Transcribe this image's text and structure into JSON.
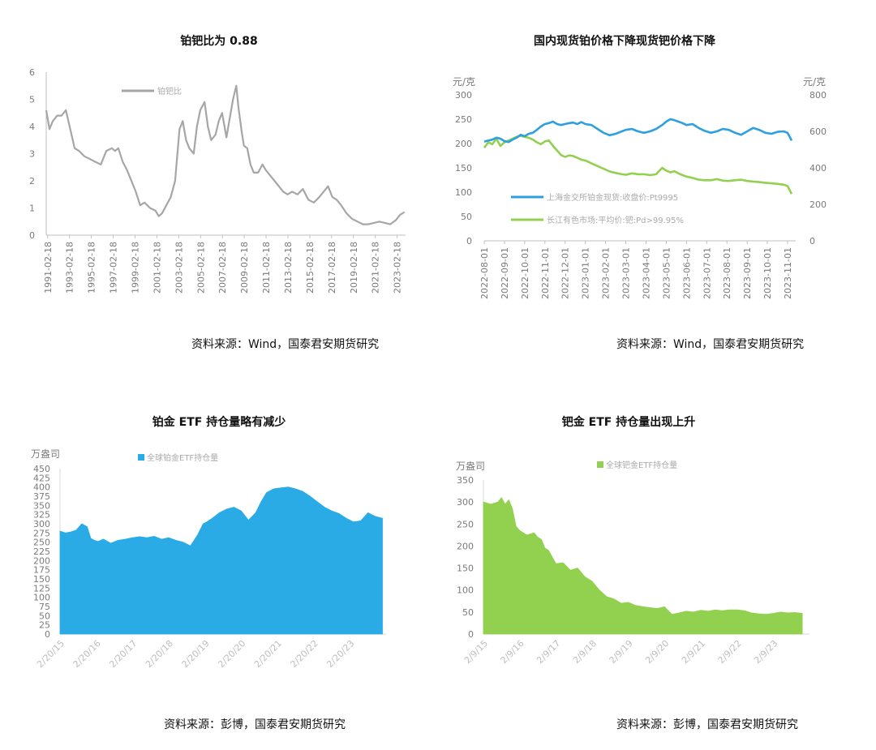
{
  "chart_data": [
    {
      "type": "line",
      "title": "铂钯比为 0.88",
      "source": "资料来源：Wind，国泰君安期货研究",
      "ylim": [
        0,
        6
      ],
      "yticks": [
        "0",
        "1",
        "2",
        "3",
        "4",
        "5",
        "6"
      ],
      "xticks": [
        "1991-02-18",
        "1993-02-18",
        "1995-02-18",
        "1997-02-18",
        "1999-02-18",
        "2001-02-18",
        "2003-02-18",
        "2005-02-18",
        "2007-02-18",
        "2009-02-18",
        "2011-02-18",
        "2013-02-18",
        "2015-02-18",
        "2017-02-18",
        "2019-02-18",
        "2021-02-18",
        "2023-02-18"
      ],
      "legend": "top-center",
      "series": [
        {
          "name": "铂钯比",
          "color": "#a6a6a6",
          "x": [
            1991.0,
            1991.3,
            1991.6,
            1992.0,
            1992.4,
            1992.8,
            1993.2,
            1993.6,
            1994.0,
            1994.5,
            1995.0,
            1995.5,
            1996.0,
            1996.5,
            1997.0,
            1997.3,
            1997.6,
            1998.0,
            1998.4,
            1998.8,
            1999.2,
            1999.6,
            2000.0,
            2000.5,
            2001.0,
            2001.3,
            2001.6,
            2002.0,
            2002.4,
            2002.8,
            2003.2,
            2003.5,
            2003.8,
            2004.1,
            2004.5,
            2004.8,
            2005.1,
            2005.5,
            2005.8,
            2006.1,
            2006.5,
            2006.8,
            2007.1,
            2007.5,
            2007.8,
            2008.1,
            2008.4,
            2008.6,
            2008.9,
            2009.1,
            2009.4,
            2009.7,
            2010.0,
            2010.4,
            2010.8,
            2011.1,
            2011.5,
            2011.9,
            2012.3,
            2012.7,
            2013.1,
            2013.5,
            2014.0,
            2014.5,
            2015.0,
            2015.5,
            2016.0,
            2016.4,
            2016.8,
            2017.2,
            2017.6,
            2018.0,
            2018.5,
            2019.0,
            2019.5,
            2020.0,
            2020.5,
            2021.0,
            2021.5,
            2022.0,
            2022.5,
            2023.0,
            2023.4,
            2023.8
          ],
          "values": [
            4.6,
            3.9,
            4.2,
            4.4,
            4.4,
            4.6,
            3.9,
            3.2,
            3.1,
            2.9,
            2.8,
            2.7,
            2.6,
            3.1,
            3.2,
            3.1,
            3.2,
            2.7,
            2.4,
            2.0,
            1.6,
            1.1,
            1.2,
            1.0,
            0.9,
            0.7,
            0.8,
            1.1,
            1.4,
            2.0,
            3.9,
            4.2,
            3.5,
            3.2,
            3.0,
            4.0,
            4.6,
            4.9,
            4.0,
            3.5,
            3.7,
            4.2,
            4.5,
            3.6,
            4.3,
            5.0,
            5.5,
            4.7,
            3.8,
            3.3,
            3.2,
            2.6,
            2.3,
            2.3,
            2.6,
            2.4,
            2.2,
            2.0,
            1.8,
            1.6,
            1.5,
            1.6,
            1.5,
            1.7,
            1.3,
            1.2,
            1.4,
            1.6,
            1.8,
            1.4,
            1.3,
            1.1,
            0.8,
            0.6,
            0.5,
            0.4,
            0.4,
            0.45,
            0.5,
            0.45,
            0.4,
            0.55,
            0.75,
            0.85
          ]
        }
      ]
    },
    {
      "type": "line",
      "title": "国内现货铂价格下降现货钯价格下降",
      "source": "资料来源：Wind，国泰君安期货研究",
      "yunit_left": "元/克",
      "yunit_right": "元/克",
      "ylim": [
        0,
        300
      ],
      "ylim_right": [
        0,
        800
      ],
      "yticks": [
        "0",
        "50",
        "100",
        "150",
        "200",
        "250",
        "300"
      ],
      "yticks_right": [
        "0",
        "200",
        "400",
        "600",
        "800"
      ],
      "xticks": [
        "2022-08-01",
        "2022-09-01",
        "2022-10-01",
        "2022-11-01",
        "2022-12-01",
        "2023-01-01",
        "2023-02-01",
        "2023-03-01",
        "2023-04-01",
        "2023-05-01",
        "2023-06-01",
        "2023-07-01",
        "2023-08-01",
        "2023-09-01",
        "2023-10-01",
        "2023-11-01"
      ],
      "legend": "left-middle",
      "series": [
        {
          "name": "上海金交所铂金现货:收盘价:Pt9995",
          "color": "#2e9fe0",
          "axis": "left",
          "x": [
            0.0,
            0.2,
            0.4,
            0.6,
            0.8,
            1.0,
            1.2,
            1.4,
            1.6,
            1.8,
            2.0,
            2.2,
            2.4,
            2.6,
            2.8,
            3.0,
            3.2,
            3.4,
            3.6,
            3.8,
            4.0,
            4.2,
            4.4,
            4.6,
            4.8,
            5.0,
            5.3,
            5.6,
            5.9,
            6.2,
            6.5,
            6.8,
            7.0,
            7.3,
            7.6,
            7.9,
            8.2,
            8.5,
            8.8,
            9.0,
            9.2,
            9.4,
            9.6,
            9.8,
            10.0,
            10.3,
            10.6,
            10.9,
            11.2,
            11.5,
            11.8,
            12.1,
            12.4,
            12.7,
            13.0,
            13.3,
            13.6,
            13.9,
            14.2,
            14.5,
            14.8,
            15.0,
            15.2
          ],
          "values": [
            204,
            206,
            208,
            212,
            210,
            205,
            203,
            208,
            212,
            218,
            215,
            220,
            222,
            228,
            235,
            240,
            242,
            245,
            240,
            238,
            240,
            242,
            243,
            240,
            244,
            240,
            238,
            230,
            222,
            217,
            220,
            225,
            228,
            230,
            225,
            222,
            225,
            230,
            238,
            245,
            250,
            248,
            245,
            242,
            238,
            240,
            232,
            226,
            222,
            225,
            230,
            228,
            222,
            218,
            225,
            232,
            228,
            222,
            220,
            224,
            225,
            222,
            206
          ]
        },
        {
          "name": "长江有色市场:平均价:钯:Pd>99.95%",
          "color": "#92d050",
          "axis": "right",
          "x": [
            0.0,
            0.2,
            0.4,
            0.6,
            0.8,
            1.0,
            1.2,
            1.4,
            1.6,
            1.8,
            2.0,
            2.2,
            2.4,
            2.6,
            2.8,
            3.0,
            3.2,
            3.4,
            3.6,
            3.8,
            4.0,
            4.2,
            4.4,
            4.6,
            4.8,
            5.0,
            5.3,
            5.6,
            5.9,
            6.2,
            6.5,
            6.8,
            7.0,
            7.3,
            7.6,
            7.9,
            8.2,
            8.5,
            8.8,
            9.0,
            9.2,
            9.4,
            9.6,
            9.8,
            10.0,
            10.3,
            10.6,
            10.9,
            11.2,
            11.5,
            11.8,
            12.1,
            12.4,
            12.7,
            13.0,
            13.3,
            13.6,
            13.9,
            14.2,
            14.5,
            14.8,
            15.0,
            15.2
          ],
          "values": [
            510,
            540,
            530,
            560,
            520,
            540,
            550,
            560,
            570,
            575,
            570,
            565,
            555,
            540,
            530,
            545,
            550,
            520,
            495,
            470,
            460,
            468,
            465,
            455,
            445,
            440,
            425,
            410,
            395,
            380,
            372,
            365,
            362,
            370,
            365,
            365,
            360,
            365,
            400,
            385,
            375,
            382,
            370,
            360,
            352,
            345,
            335,
            332,
            332,
            338,
            330,
            328,
            332,
            335,
            328,
            325,
            322,
            318,
            315,
            312,
            308,
            300,
            257
          ]
        }
      ]
    },
    {
      "type": "area",
      "title": "铂金 ETF 持仓量略有减少",
      "source": "资料来源：彭博，国泰君安期货研究",
      "yunit": "万盎司",
      "ylim": [
        0,
        450
      ],
      "yticks": [
        "0",
        "25",
        "50",
        "75",
        "100",
        "125",
        "150",
        "175",
        "200",
        "225",
        "250",
        "275",
        "300",
        "325",
        "350",
        "375",
        "400",
        "425",
        "450"
      ],
      "xticks": [
        "2/20/15",
        "2/20/16",
        "2/20/17",
        "2/20/18",
        "2/20/19",
        "2/20/20",
        "2/20/21",
        "2/20/22",
        "2/20/23"
      ],
      "legend": "top-center",
      "series": [
        {
          "name": "全球铂金ETF持仓量",
          "color": "#2aabe6",
          "x": [
            0.0,
            0.15,
            0.3,
            0.45,
            0.6,
            0.75,
            0.85,
            0.95,
            1.05,
            1.2,
            1.4,
            1.6,
            1.8,
            2.0,
            2.2,
            2.4,
            2.6,
            2.8,
            3.0,
            3.2,
            3.4,
            3.6,
            3.8,
            3.95,
            4.05,
            4.2,
            4.4,
            4.6,
            4.8,
            5.0,
            5.2,
            5.4,
            5.55,
            5.7,
            5.9,
            6.1,
            6.3,
            6.5,
            6.7,
            6.9,
            7.1,
            7.3,
            7.5,
            7.7,
            7.9,
            8.1,
            8.3,
            8.5,
            8.7,
            8.9
          ],
          "values": [
            280,
            275,
            278,
            283,
            300,
            292,
            260,
            255,
            252,
            258,
            247,
            255,
            258,
            262,
            265,
            262,
            266,
            258,
            262,
            255,
            250,
            240,
            270,
            300,
            305,
            315,
            330,
            340,
            345,
            335,
            310,
            330,
            360,
            385,
            395,
            398,
            400,
            395,
            388,
            375,
            360,
            345,
            335,
            328,
            315,
            305,
            308,
            330,
            320,
            315
          ]
        }
      ]
    },
    {
      "type": "area",
      "title": "钯金 ETF 持仓量出现上升",
      "source": "资料来源：彭博，国泰君安期货研究",
      "yunit": "万盎司",
      "ylim": [
        0,
        350
      ],
      "yticks": [
        "0",
        "50",
        "100",
        "150",
        "200",
        "250",
        "300",
        "350"
      ],
      "xticks": [
        "2/9/15",
        "2/9/16",
        "2/9/17",
        "2/9/18",
        "2/9/19",
        "2/9/20",
        "2/9/21",
        "2/9/22",
        "2/9/23"
      ],
      "legend": "top-center",
      "series": [
        {
          "name": "全球钯金ETF持仓量",
          "color": "#92d050",
          "x": [
            0.0,
            0.2,
            0.4,
            0.5,
            0.6,
            0.7,
            0.8,
            0.9,
            1.0,
            1.2,
            1.4,
            1.5,
            1.6,
            1.7,
            1.8,
            2.0,
            2.2,
            2.4,
            2.6,
            2.8,
            3.0,
            3.2,
            3.4,
            3.6,
            3.8,
            4.0,
            4.2,
            4.4,
            4.6,
            4.8,
            5.0,
            5.2,
            5.4,
            5.6,
            5.8,
            6.0,
            6.2,
            6.4,
            6.6,
            6.8,
            7.0,
            7.2,
            7.4,
            7.6,
            7.8,
            8.0,
            8.2,
            8.4,
            8.6,
            8.8
          ],
          "values": [
            300,
            295,
            300,
            310,
            295,
            305,
            285,
            245,
            235,
            225,
            230,
            220,
            215,
            195,
            190,
            160,
            162,
            145,
            150,
            130,
            120,
            100,
            85,
            80,
            70,
            72,
            65,
            62,
            60,
            58,
            62,
            45,
            48,
            52,
            50,
            54,
            52,
            55,
            53,
            55,
            55,
            53,
            48,
            46,
            45,
            47,
            50,
            48,
            49,
            47
          ]
        }
      ]
    }
  ]
}
